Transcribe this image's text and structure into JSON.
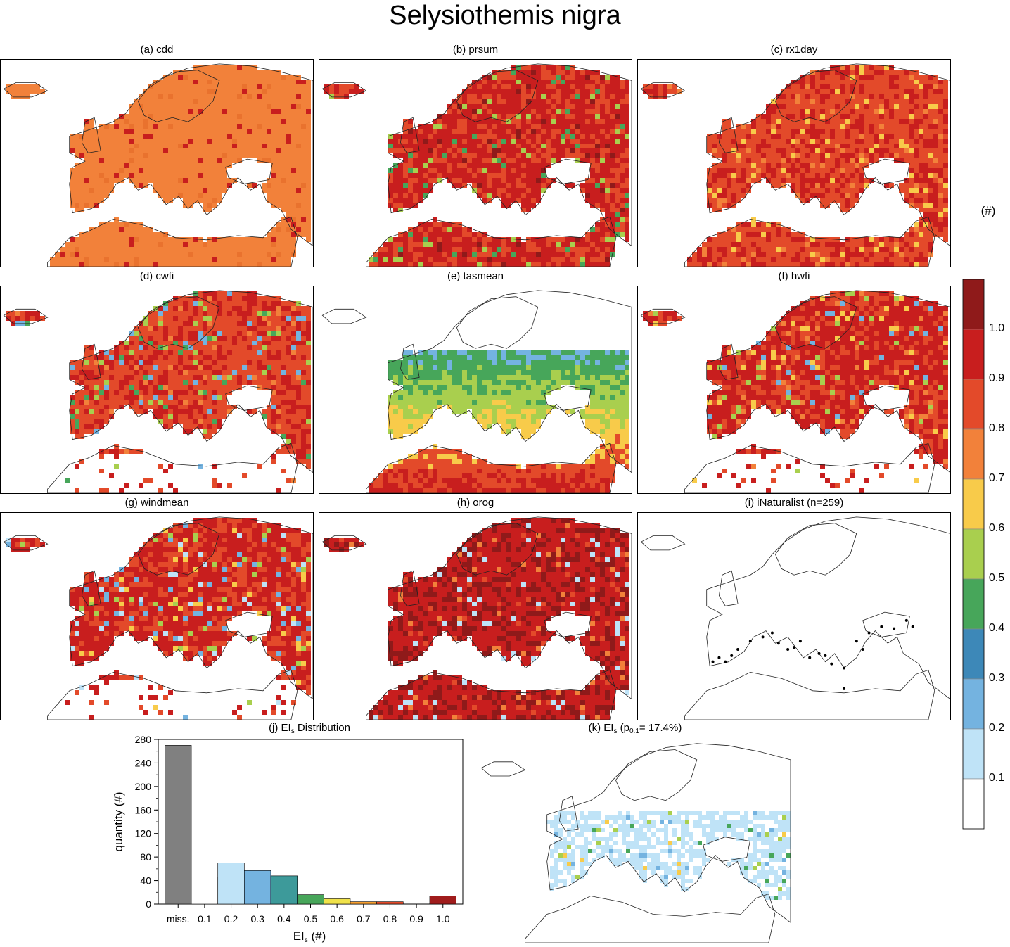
{
  "title": "Selysiothemis nigra",
  "panels": [
    {
      "id": "a",
      "label": "(a) cdd",
      "palette": "cdd"
    },
    {
      "id": "b",
      "label": "(b) prsum",
      "palette": "prsum"
    },
    {
      "id": "c",
      "label": "(c) rx1day",
      "palette": "rx1day"
    },
    {
      "id": "d",
      "label": "(d) cwfi",
      "palette": "cwfi"
    },
    {
      "id": "e",
      "label": "(e) tasmean",
      "palette": "tasmean"
    },
    {
      "id": "f",
      "label": "(f) hwfi",
      "palette": "hwfi"
    },
    {
      "id": "g",
      "label": "(g) windmean",
      "palette": "windmean"
    },
    {
      "id": "h",
      "label": "(h) orog",
      "palette": "orog"
    },
    {
      "id": "i",
      "label": "(i) iNaturalist (n=259)",
      "palette": "points"
    }
  ],
  "panel_j_title": {
    "prefix": "(j) EI",
    "sub": "s",
    "suffix": " Distribution"
  },
  "panel_k_title": {
    "prefix": "(k) EI",
    "sub": "s",
    "mid": " (p",
    "sub2": "0.1",
    "suffix": "= 17.4%)"
  },
  "colorbar": {
    "unit": "(#)",
    "labels": [
      "1.0",
      "0.9",
      "0.8",
      "0.7",
      "0.6",
      "0.5",
      "0.4",
      "0.3",
      "0.2",
      "0.1"
    ],
    "colors": [
      "#8f1a1a",
      "#c81e1e",
      "#e34a2a",
      "#f2813a",
      "#f8cb4a",
      "#a9cf4e",
      "#47a65a",
      "#3d88b8",
      "#74b3e0",
      "#bfe3f7",
      "#ffffff"
    ]
  },
  "chart_data": {
    "type": "bar",
    "categories": [
      "miss.",
      "0.1",
      "0.2",
      "0.3",
      "0.4",
      "0.5",
      "0.6",
      "0.7",
      "0.8",
      "0.9",
      "1.0"
    ],
    "values": [
      270,
      46,
      70,
      57,
      48,
      16,
      9,
      4,
      4,
      0,
      14
    ],
    "colors": [
      "#808080",
      "#ffffff",
      "#bfe3f7",
      "#74b3e0",
      "#3d9a9a",
      "#47a65a",
      "#f0e24a",
      "#f8a030",
      "#e34a2a",
      "#c81e1e",
      "#a01c1c"
    ],
    "xlabel": {
      "prefix": "EI",
      "sub": "s",
      "suffix": " (#)"
    },
    "ylabel": "quantity (#)",
    "yticks": [
      0,
      40,
      80,
      120,
      160,
      200,
      240,
      280
    ],
    "ylim": [
      0,
      280
    ]
  }
}
